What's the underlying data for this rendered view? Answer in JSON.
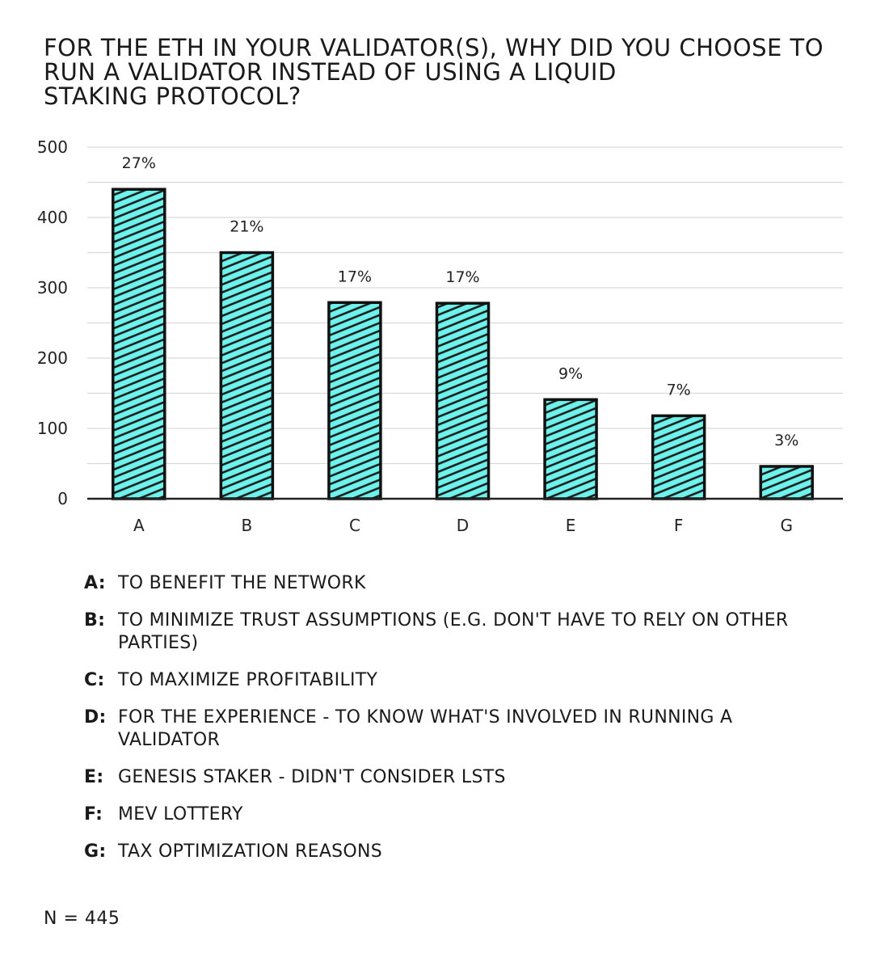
{
  "title_lines": [
    "FOR THE ETH IN YOUR VALIDATOR(S), WHY DID YOU CHOOSE TO",
    "RUN A VALIDATOR INSTEAD OF USING A LIQUID",
    "STAKING PROTOCOL?"
  ],
  "chart_data": {
    "type": "bar",
    "title": "FOR THE ETH IN YOUR VALIDATOR(S), WHY DID YOU CHOOSE TO RUN A VALIDATOR INSTEAD OF USING A LIQUID STAKING PROTOCOL?",
    "categories": [
      "A",
      "B",
      "C",
      "D",
      "E",
      "F",
      "G"
    ],
    "values": [
      440,
      350,
      279,
      278,
      141,
      118,
      46
    ],
    "data_labels": [
      "27%",
      "21%",
      "17%",
      "17%",
      "9%",
      "7%",
      "3%"
    ],
    "ylim": [
      0,
      500
    ],
    "yticks": [
      0,
      100,
      200,
      300,
      400,
      500
    ],
    "xlabel": "",
    "ylabel": "",
    "grid": true,
    "colors": {
      "bar_fill": "#6ef2ec",
      "bar_stroke": "#111111",
      "hatch": "#1b1b1b",
      "grid": "#d9d9d9"
    }
  },
  "legend": [
    {
      "key": "A:",
      "text": "TO BENEFIT THE NETWORK"
    },
    {
      "key": "B:",
      "text": "TO MINIMIZE TRUST ASSUMPTIONS (E.G. DON'T HAVE TO RELY ON OTHER PARTIES)"
    },
    {
      "key": "C:",
      "text": "TO MAXIMIZE PROFITABILITY"
    },
    {
      "key": "D:",
      "text": "FOR THE EXPERIENCE - TO KNOW WHAT'S INVOLVED IN RUNNING A VALIDATOR"
    },
    {
      "key": "E:",
      "text": "GENESIS STAKER - DIDN'T CONSIDER LSTS"
    },
    {
      "key": "F:",
      "text": "MEV LOTTERY"
    },
    {
      "key": "G:",
      "text": "TAX OPTIMIZATION REASONS"
    }
  ],
  "footer": "N = 445"
}
